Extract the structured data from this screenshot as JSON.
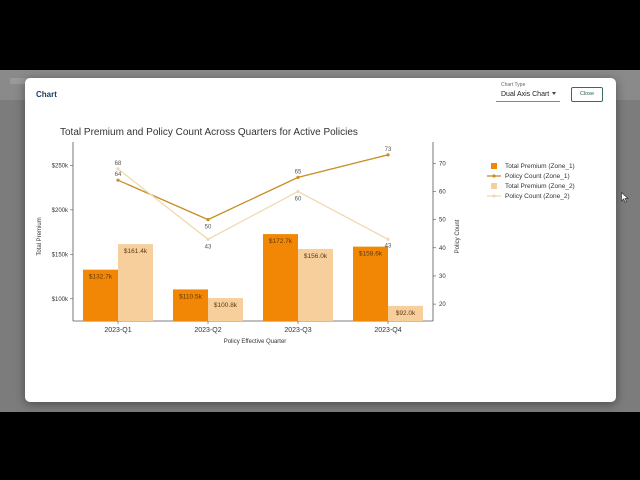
{
  "modal": {
    "title": "Chart",
    "chart_type_label": "Chart Type",
    "chart_type_value": "Dual Axis Chart",
    "close_label": "Close"
  },
  "chart_data": {
    "type": "bar",
    "title": "Total Premium and Policy Count Across Quarters for Active Policies",
    "xlabel": "Policy Effective Quarter",
    "ylabel": "Total Premium",
    "y2label": "Policy Count",
    "categories": [
      "2023-Q1",
      "2023-Q2",
      "2023-Q3",
      "2023-Q4"
    ],
    "ylim": [
      75000,
      265000
    ],
    "y_ticks": [
      100000,
      150000,
      200000,
      250000
    ],
    "y_tick_labels": [
      "$100k",
      "$150k",
      "$200k",
      "$250k"
    ],
    "y2lim": [
      14,
      74
    ],
    "y2_ticks": [
      20,
      30,
      40,
      50,
      60,
      70
    ],
    "y2_tick_labels": [
      "20",
      "30",
      "40",
      "50",
      "60",
      "70"
    ],
    "grid": false,
    "legend_position": "right",
    "series": [
      {
        "name": "Total Premium (Zone_1)",
        "kind": "bar",
        "axis": "left",
        "color": "#f28705",
        "values": [
          132700,
          110500,
          172700,
          158600
        ],
        "labels": [
          "$132.7k",
          "$110.5k",
          "$172.7k",
          "$158.6k"
        ]
      },
      {
        "name": "Total Premium (Zone_2)",
        "kind": "bar",
        "axis": "left",
        "color": "#f7cf9d",
        "values": [
          161400,
          100800,
          156000,
          92000
        ],
        "labels": [
          "$161.4k",
          "$100.8k",
          "$156.0k",
          "$92.0k"
        ]
      },
      {
        "name": "Policy Count (Zone_1)",
        "kind": "line",
        "axis": "right",
        "color": "#c98d26",
        "values": [
          64,
          50,
          65,
          73
        ],
        "labels": [
          "64",
          "50",
          "65",
          "73"
        ]
      },
      {
        "name": "Policy Count (Zone_2)",
        "kind": "line",
        "axis": "right",
        "color": "#f0d9b0",
        "values": [
          68,
          43,
          60,
          43
        ],
        "labels": [
          "68",
          "43",
          "60",
          "43"
        ]
      }
    ]
  }
}
